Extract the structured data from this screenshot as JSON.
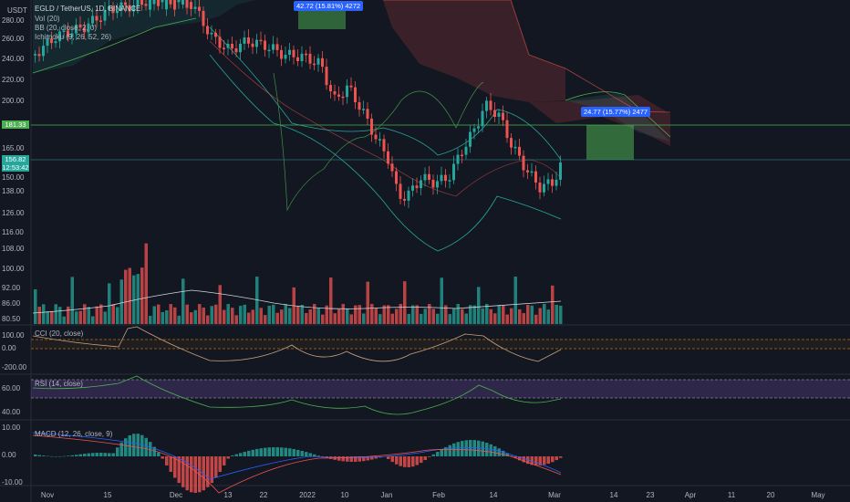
{
  "app": {
    "currency": "USDT",
    "symbol_line": "EGLD / TetherUS, 1D, BINANCE",
    "legend": [
      "Vol (20)",
      "BB (20, close, 2, 0)",
      "Ichimoku (9, 26, 52, 26)"
    ]
  },
  "price_axis": {
    "ticks": [
      "280.00",
      "260.00",
      "240.00",
      "220.00",
      "200.00",
      "165.00",
      "150.00",
      "138.00",
      "126.00",
      "116.00",
      "108.00",
      "100.00",
      "92.00",
      "86.00",
      "80.50"
    ],
    "last_price": "156.82",
    "countdown": "12:53:42",
    "level_price": "181.33"
  },
  "measurements": [
    {
      "label": "42.72 (15.81%) 4272"
    },
    {
      "label": "24.77 (15.77%) 2477"
    }
  ],
  "panes": {
    "cci": {
      "title": "CCI (20, close)",
      "ticks": [
        "100.00",
        "0.00",
        "-200.00"
      ]
    },
    "rsi": {
      "title": "RSI (14, close)",
      "ticks": [
        "60.00",
        "40.00"
      ]
    },
    "macd": {
      "title": "MACD (12, 26, close, 9)",
      "ticks": [
        "10.00",
        "0.00",
        "-10.00"
      ]
    }
  },
  "time_axis": [
    "Nov",
    "15",
    "Dec",
    "13",
    "22",
    "2022",
    "10",
    "Jan",
    "Feb",
    "14",
    "Mar",
    "14",
    "23",
    "Apr",
    "11",
    "20",
    "May"
  ],
  "colors": {
    "up": "#26a69a",
    "down": "#ef5350",
    "background": "#131722",
    "rsi_band": "#7e57c2",
    "level": "#4caf50"
  }
}
